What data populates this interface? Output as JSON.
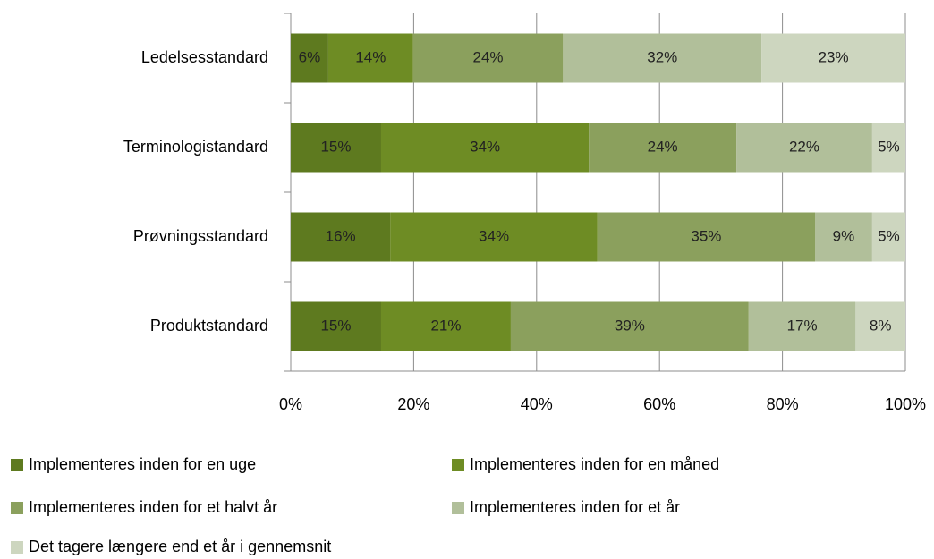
{
  "chart_data": {
    "type": "stacked_bar_horizontal",
    "categories": [
      "Ledelsesstandard",
      "Terminologistandard",
      "Prøvningsstandard",
      "Produktstandard"
    ],
    "series": [
      {
        "name": "Implementeres inden for en uge",
        "color": "#5e7a1f",
        "values": [
          6.1,
          14.7,
          16.2,
          14.7
        ],
        "value_labels": [
          "6%",
          "15%",
          "16%",
          "15%"
        ]
      },
      {
        "name": "Implementeres inden for en måned",
        "color": "#6e8c24",
        "values": [
          13.8,
          33.8,
          33.7,
          21.1
        ],
        "value_labels": [
          "14%",
          "34%",
          "34%",
          "21%"
        ]
      },
      {
        "name": "Implementeres inden for et halvt år",
        "color": "#8ba05d",
        "values": [
          24.4,
          24.0,
          35.4,
          38.7
        ],
        "value_labels": [
          "24%",
          "24%",
          "35%",
          "39%"
        ]
      },
      {
        "name": "Implementeres inden for et år",
        "color": "#b1bf9a",
        "values": [
          32.3,
          22.1,
          9.3,
          17.4
        ],
        "value_labels": [
          "32%",
          "22%",
          "9%",
          "17%"
        ]
      },
      {
        "name": "Det tagere længere end et år i gennemsnit",
        "color": "#cdd6bf",
        "values": [
          23.4,
          5.4,
          5.4,
          8.1
        ],
        "value_labels": [
          "23%",
          "5%",
          "5%",
          "8%"
        ]
      }
    ],
    "xlim": [
      0,
      100
    ],
    "xticks": [
      {
        "value": 0,
        "label": "0%"
      },
      {
        "value": 20,
        "label": "20%"
      },
      {
        "value": 40,
        "label": "40%"
      },
      {
        "value": 60,
        "label": "60%"
      },
      {
        "value": 80,
        "label": "80%"
      },
      {
        "value": 100,
        "label": "100%"
      }
    ],
    "grid": true,
    "legend": "bottom"
  }
}
